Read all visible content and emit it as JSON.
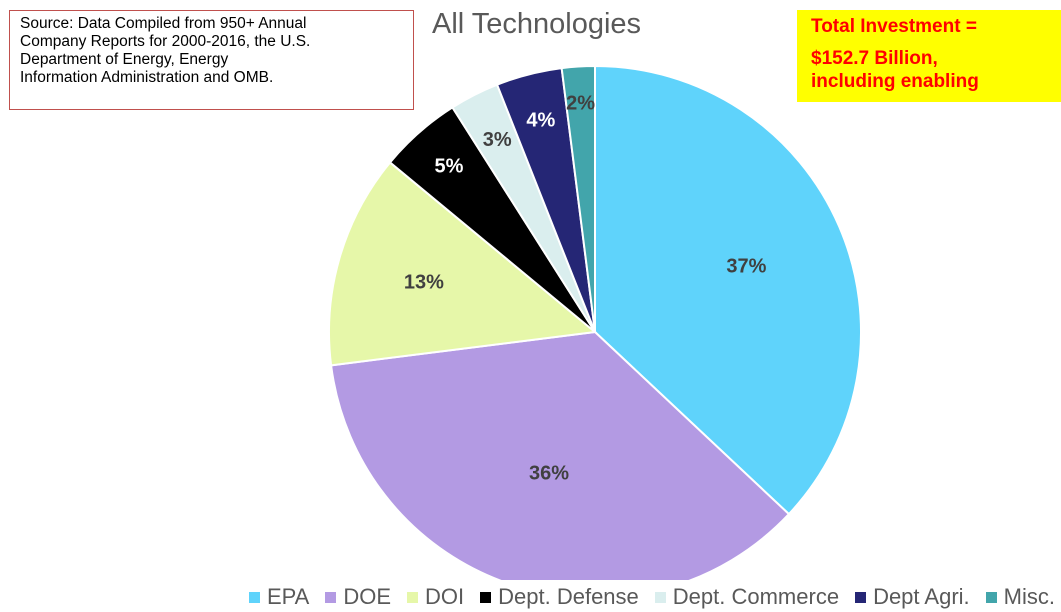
{
  "source_note": {
    "lines": [
      "Source: Data Compiled from 950+ Annual",
      "Company Reports for 2000-2016, the U.S.",
      "Department  of Energy, Energy",
      "Information Administration and OMB."
    ]
  },
  "callout": {
    "line1": "Total Investment =",
    "line2": "$152.7 Billion,",
    "line3": "including enabling"
  },
  "chart_data": {
    "type": "pie",
    "title": "All Technologies",
    "start": "12 o'clock, clockwise",
    "legend_position": "bottom",
    "slices": [
      {
        "name": "EPA",
        "value": 37,
        "label": "37%",
        "color": "#5fd3fb"
      },
      {
        "name": "DOE",
        "value": 36,
        "label": "36%",
        "color": "#b39ae3"
      },
      {
        "name": "DOI",
        "value": 13,
        "label": "13%",
        "color": "#e6f7a9"
      },
      {
        "name": "Dept. Defense",
        "value": 5,
        "label": "5%",
        "color": "#000000"
      },
      {
        "name": "Dept. Commerce",
        "value": 3,
        "label": "3%",
        "color": "#daeeee"
      },
      {
        "name": "Dept Agri.",
        "value": 4,
        "label": "4%",
        "color": "#252675"
      },
      {
        "name": "Misc.",
        "value": 2,
        "label": "2%",
        "color": "#42a5ab"
      }
    ]
  }
}
